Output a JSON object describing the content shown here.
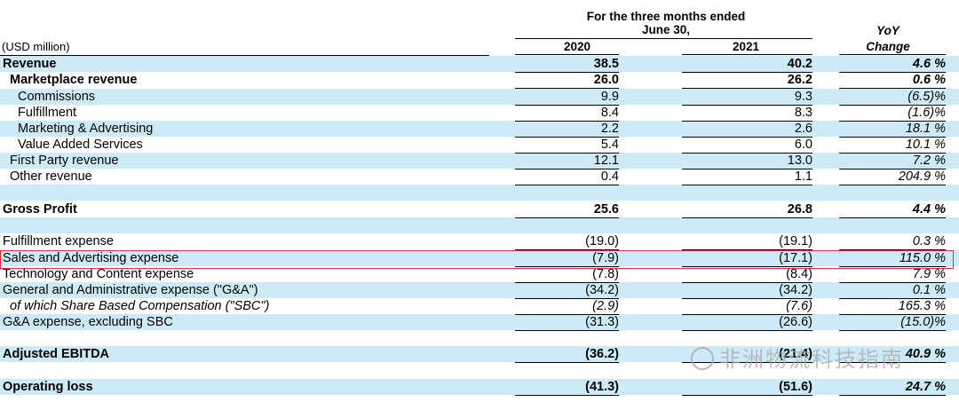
{
  "header": {
    "period_line1": "For the three months ended",
    "period_line2": "June 30,",
    "units": "(USD million)",
    "col_2020": "2020",
    "col_2021": "2021",
    "yoy_line1": "YoY",
    "yoy_line2": "Change"
  },
  "rows": [
    {
      "label": "Revenue",
      "v2020": "38.5",
      "v2021": "40.2",
      "yoy": "4.6 %",
      "style": "b",
      "indent": 0,
      "band": true
    },
    {
      "label": "Marketplace revenue",
      "v2020": "26.0",
      "v2021": "26.2",
      "yoy": "0.6 %",
      "style": "b",
      "indent": 1,
      "band": false
    },
    {
      "label": "Commissions",
      "v2020": "9.9",
      "v2021": "9.3",
      "yoy": "(6.5)%",
      "style": "",
      "indent": 2,
      "band": true
    },
    {
      "label": "Fulfillment",
      "v2020": "8.4",
      "v2021": "8.3",
      "yoy": "(1.6)%",
      "style": "",
      "indent": 2,
      "band": false
    },
    {
      "label": "Marketing & Advertising",
      "v2020": "2.2",
      "v2021": "2.6",
      "yoy": "18.1 %",
      "style": "",
      "indent": 2,
      "band": true
    },
    {
      "label": "Value Added Services",
      "v2020": "5.4",
      "v2021": "6.0",
      "yoy": "10.1 %",
      "style": "",
      "indent": 2,
      "band": false
    },
    {
      "label": "First Party revenue",
      "v2020": "12.1",
      "v2021": "13.0",
      "yoy": "7.2 %",
      "style": "",
      "indent": 1,
      "band": true
    },
    {
      "label": "Other revenue",
      "v2020": "0.4",
      "v2021": "1.1",
      "yoy": "204.9 %",
      "style": "",
      "indent": 1,
      "band": false
    },
    {
      "label": "",
      "v2020": "",
      "v2021": "",
      "yoy": "",
      "style": "",
      "indent": 0,
      "band": true
    },
    {
      "label": "Gross Profit",
      "v2020": "25.6",
      "v2021": "26.8",
      "yoy": "4.4 %",
      "style": "b",
      "indent": 0,
      "band": false
    },
    {
      "label": "",
      "v2020": "",
      "v2021": "",
      "yoy": "",
      "style": "",
      "indent": 0,
      "band": true
    },
    {
      "label": "Fulfillment expense",
      "v2020": "(19.0)",
      "v2021": "(19.1)",
      "yoy": "0.3 %",
      "style": "",
      "indent": 0,
      "band": false
    },
    {
      "label": "Sales and Advertising expense",
      "v2020": "(7.9)",
      "v2021": "(17.1)",
      "yoy": "115.0 %",
      "style": "",
      "indent": 0,
      "band": true
    },
    {
      "label": "Technology and Content expense",
      "v2020": "(7.8)",
      "v2021": "(8.4)",
      "yoy": "7.9 %",
      "style": "",
      "indent": 0,
      "band": false
    },
    {
      "label": "General and Administrative expense (\"G&A\")",
      "v2020": "(34.2)",
      "v2021": "(34.2)",
      "yoy": "0.1 %",
      "style": "",
      "indent": 0,
      "band": true
    },
    {
      "label": "of which Share Based Compensation (\"SBC\")",
      "v2020": "(2.9)",
      "v2021": "(7.6)",
      "yoy": "165.3 %",
      "style": "i",
      "indent": 1,
      "band": false
    },
    {
      "label": "G&A expense, excluding SBC",
      "v2020": "(31.3)",
      "v2021": "(26.6)",
      "yoy": "(15.0)%",
      "style": "",
      "indent": 0,
      "band": true
    },
    {
      "label": "",
      "v2020": "",
      "v2021": "",
      "yoy": "",
      "style": "",
      "indent": 0,
      "band": false
    },
    {
      "label": "Adjusted EBITDA",
      "v2020": "(36.2)",
      "v2021": "(21.4)",
      "yoy": "40.9 %",
      "style": "b",
      "indent": 0,
      "band": true
    },
    {
      "label": "",
      "v2020": "",
      "v2021": "",
      "yoy": "",
      "style": "",
      "indent": 0,
      "band": false
    },
    {
      "label": "Operating loss",
      "v2020": "(41.3)",
      "v2021": "(51.6)",
      "yoy": "24.7 %",
      "style": "b",
      "indent": 0,
      "band": true
    }
  ],
  "watermark": {
    "text": "非洲物流科技指南",
    "icon": "wechat-icon"
  }
}
